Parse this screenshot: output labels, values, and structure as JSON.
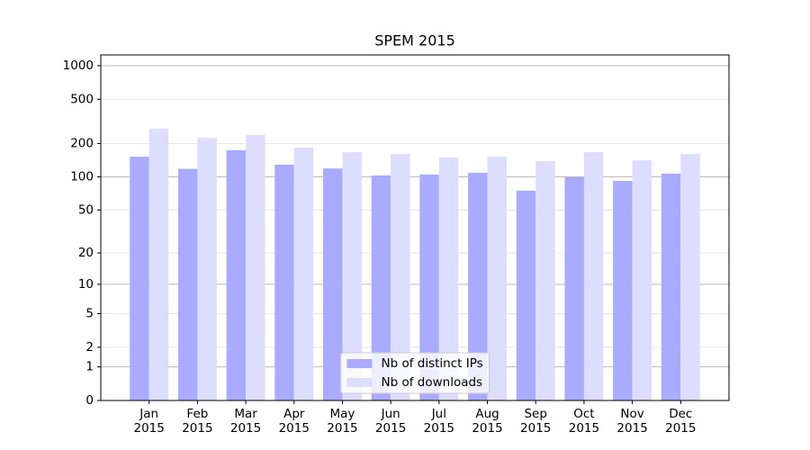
{
  "chart_data": {
    "type": "bar",
    "title": "SPEM 2015",
    "categories": [
      "Jan 2015",
      "Feb 2015",
      "Mar 2015",
      "Apr 2015",
      "May 2015",
      "Jun 2015",
      "Jul 2015",
      "Aug 2015",
      "Sep 2015",
      "Oct 2015",
      "Nov 2015",
      "Dec 2015"
    ],
    "series": [
      {
        "name": "Nb of distinct IPs",
        "color": "#aaaaff",
        "values": [
          152,
          118,
          174,
          129,
          119,
          103,
          105,
          109,
          75,
          99,
          92,
          107
        ]
      },
      {
        "name": "Nb of downloads",
        "color": "#ddddff",
        "values": [
          271,
          225,
          238,
          184,
          167,
          161,
          150,
          152,
          139,
          167,
          141,
          161
        ]
      }
    ],
    "yscale": "log1p",
    "ylim": [
      0,
      1250
    ],
    "yticks": [
      0,
      1,
      2,
      5,
      10,
      20,
      50,
      100,
      200,
      500,
      1000
    ],
    "grid": true,
    "legend": "lower center"
  }
}
